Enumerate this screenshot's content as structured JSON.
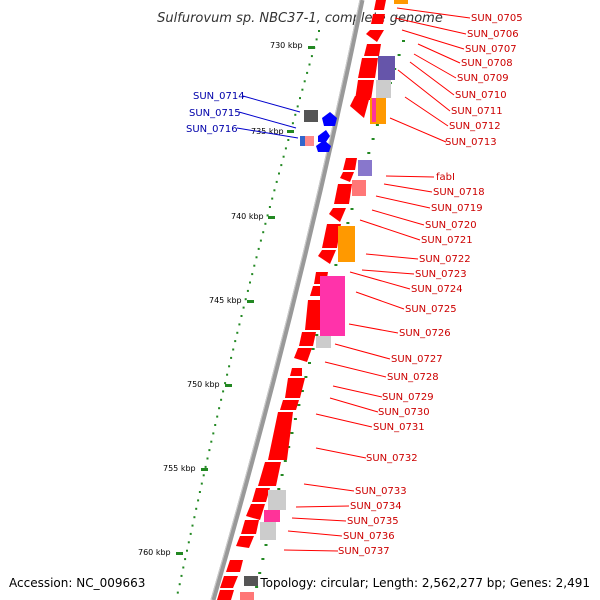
{
  "title": "Sulfurovum sp. NBC37-1, complete genome",
  "accession": "Accession: NC_009663",
  "topology": "Topology: circular; Length: 2,562,277 bp; Genes: 2,491",
  "colors": {
    "backbone": "#888888",
    "gene_red": "#ff0000",
    "label_red": "#cc0000",
    "label_blue": "#0000aa",
    "tick_green": "#228822",
    "blue_gene": "#0000ff"
  },
  "scale_ticks": [
    "730 kbp",
    "735 kbp",
    "740 kbp",
    "745 kbp",
    "750 kbp",
    "755 kbp",
    "760 kbp"
  ],
  "right_labels": [
    "SUN_0705",
    "SUN_0706",
    "SUN_0707",
    "SUN_0708",
    "SUN_0709",
    "SUN_0710",
    "SUN_0711",
    "SUN_0712",
    "SUN_0713",
    "fabI",
    "SUN_0718",
    "SUN_0719",
    "SUN_0720",
    "SUN_0721",
    "SUN_0722",
    "SUN_0723",
    "SUN_0724",
    "SUN_0725",
    "SUN_0726",
    "SUN_0727",
    "SUN_0728",
    "SUN_0729",
    "SUN_0730",
    "SUN_0731",
    "SUN_0732",
    "SUN_0733",
    "SUN_0734",
    "SUN_0735",
    "SUN_0736",
    "SUN_0737"
  ],
  "left_labels": [
    "SUN_0714",
    "SUN_0715",
    "SUN_0716"
  ]
}
